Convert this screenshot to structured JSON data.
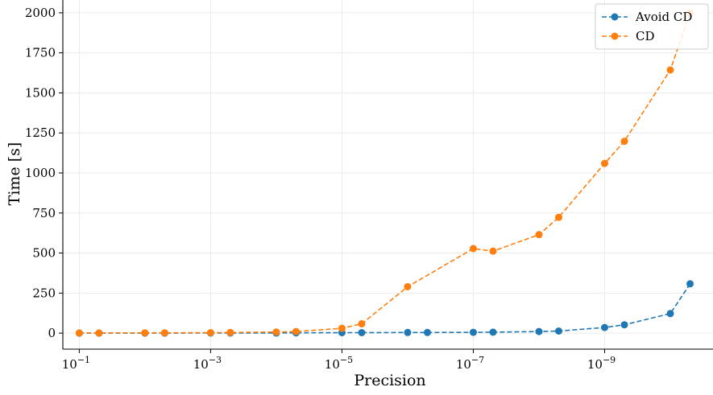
{
  "chart_data": {
    "type": "line",
    "xlabel": "Precision",
    "ylabel": "Time [s]",
    "x_scale": "log",
    "x_reversed": true,
    "x_ticks": [
      {
        "value": 0.1,
        "base": "10",
        "exp": "−1"
      },
      {
        "value": 0.001,
        "base": "10",
        "exp": "−3"
      },
      {
        "value": 1e-05,
        "base": "10",
        "exp": "−5"
      },
      {
        "value": 1e-07,
        "base": "10",
        "exp": "−7"
      },
      {
        "value": 1e-09,
        "base": "10",
        "exp": "−9"
      }
    ],
    "y_ticks": [
      0,
      250,
      500,
      750,
      1000,
      1250,
      1500,
      1750,
      2000
    ],
    "ylim": [
      -100,
      2080
    ],
    "xlim_log10": [
      -0.75,
      -10.65
    ],
    "grid": true,
    "legend_position": "top-right",
    "series": [
      {
        "name": "Avoid CD",
        "color": "#1f77b4",
        "style": "dashed",
        "x": [
          0.1,
          0.05,
          0.01,
          0.005,
          0.001,
          0.0005,
          0.0001,
          5e-05,
          1e-05,
          5e-06,
          1e-06,
          5e-07,
          1e-07,
          5e-08,
          1e-08,
          5e-09,
          1e-09,
          5e-10,
          1e-10,
          5e-11
        ],
        "y": [
          0,
          0,
          0,
          0,
          1,
          1,
          1,
          2,
          3,
          3,
          4,
          4,
          5,
          6,
          10,
          13,
          35,
          52,
          122,
          308
        ]
      },
      {
        "name": "CD",
        "color": "#ff7f0e",
        "style": "dashed",
        "x": [
          0.1,
          0.05,
          0.01,
          0.005,
          0.001,
          0.0005,
          0.0001,
          5e-05,
          1e-05,
          5e-06,
          1e-06,
          5e-07,
          1e-07,
          5e-08,
          1e-08,
          5e-09,
          1e-09,
          5e-10,
          1e-10,
          5e-11
        ],
        "y": [
          1,
          1,
          2,
          2,
          3,
          4,
          7,
          10,
          30,
          58,
          290,
          null,
          528,
          512,
          615,
          723,
          1060,
          1198,
          1643,
          2000
        ]
      }
    ]
  }
}
